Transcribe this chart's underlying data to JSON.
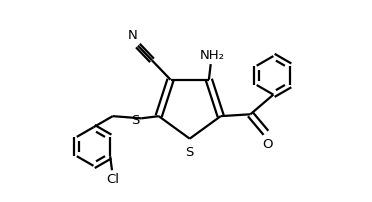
{
  "background_color": "#ffffff",
  "line_color": "#000000",
  "line_width": 1.6,
  "figsize": [
    3.72,
    2.03
  ],
  "dpi": 100,
  "labels": {
    "N": "N",
    "NH2": "NH₂",
    "S_link": "S",
    "S_ring": "S",
    "O": "O",
    "Cl": "Cl"
  },
  "xlim": [
    0,
    10
  ],
  "ylim": [
    0,
    5.4
  ]
}
